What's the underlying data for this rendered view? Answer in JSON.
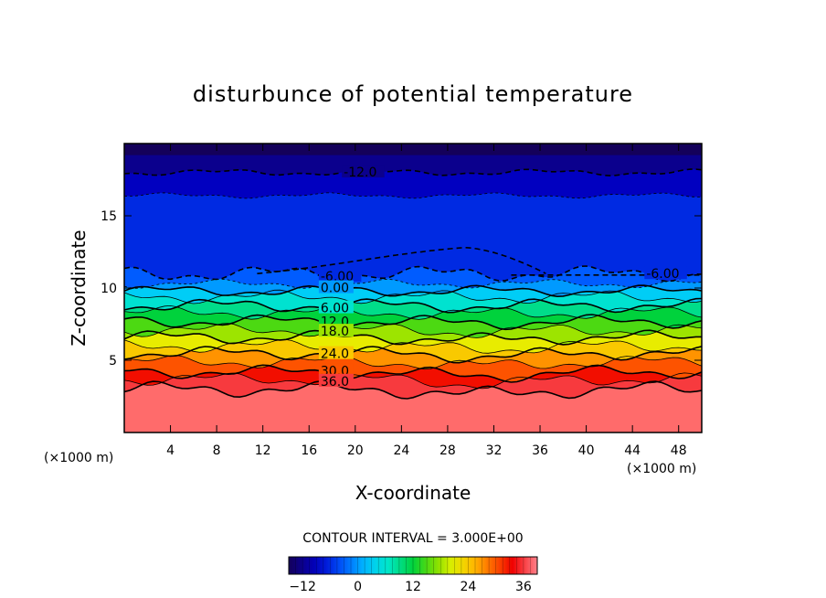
{
  "chart_data": {
    "type": "heatmap",
    "title": "disturbunce of potential temperature",
    "xlabel": "X-coordinate",
    "ylabel": "Z-coordinate",
    "x_unit_left": "(×1000 m)",
    "x_unit_right": "(×1000 m)",
    "xlim": [
      0,
      50
    ],
    "ylim": [
      0,
      20
    ],
    "xticks": [
      4,
      8,
      12,
      16,
      20,
      24,
      28,
      32,
      36,
      40,
      44,
      48
    ],
    "yticks": [
      5,
      10,
      15
    ],
    "grid": false,
    "contour_interval_text": "CONTOUR INTERVAL = 3.000E+00",
    "color_range": [
      -15,
      39
    ],
    "colorbar_ticks": [
      -12,
      0,
      12,
      24,
      36
    ],
    "levels": [
      {
        "value": -12,
        "z": 18.0,
        "amp": 0.15,
        "dashed": true,
        "label": "-12.0",
        "label_x": 19.0
      },
      {
        "value": -9,
        "z": 16.4,
        "amp": 0.12,
        "dashed": true,
        "label": "",
        "label_x": null
      },
      {
        "value": -6,
        "z": 11.0,
        "amp": 0.35,
        "dashed": true,
        "label": "-6.00",
        "label_x": 17.0
      },
      {
        "value": -3,
        "z": 10.3,
        "amp": 0.2,
        "dashed": true,
        "label": "",
        "label_x": null
      },
      {
        "value": 0,
        "z": 9.8,
        "amp": 0.25,
        "dashed": false,
        "label": "0.00",
        "label_x": 17.0
      },
      {
        "value": 3,
        "z": 9.4,
        "amp": 0.3,
        "dashed": false,
        "label": "",
        "label_x": null
      },
      {
        "value": 6,
        "z": 8.8,
        "amp": 0.3,
        "dashed": false,
        "label": "6.00",
        "label_x": 17.0
      },
      {
        "value": 9,
        "z": 8.3,
        "amp": 0.3,
        "dashed": false,
        "label": "",
        "label_x": null
      },
      {
        "value": 12,
        "z": 7.7,
        "amp": 0.3,
        "dashed": false,
        "label": "12.0",
        "label_x": 17.0
      },
      {
        "value": 15,
        "z": 7.1,
        "amp": 0.3,
        "dashed": false,
        "label": "",
        "label_x": null
      },
      {
        "value": 18,
        "z": 6.6,
        "amp": 0.3,
        "dashed": false,
        "label": "18.0",
        "label_x": 17.0
      },
      {
        "value": 21,
        "z": 6.0,
        "amp": 0.3,
        "dashed": false,
        "label": "",
        "label_x": null
      },
      {
        "value": 24,
        "z": 5.5,
        "amp": 0.3,
        "dashed": false,
        "label": "24.0",
        "label_x": 17.0
      },
      {
        "value": 27,
        "z": 4.9,
        "amp": 0.3,
        "dashed": false,
        "label": "",
        "label_x": null
      },
      {
        "value": 30,
        "z": 4.2,
        "amp": 0.3,
        "dashed": false,
        "label": "30.0",
        "label_x": 17.0
      },
      {
        "value": 33,
        "z": 3.7,
        "amp": 0.3,
        "dashed": false,
        "label": "",
        "label_x": null
      },
      {
        "value": 36,
        "z": 3.0,
        "amp": 0.35,
        "dashed": false,
        "label": "36.0",
        "label_x": 17.0
      }
    ],
    "extra_label": {
      "text": "-6.00",
      "x": 45.2,
      "z": 11.0
    },
    "dome": {
      "value": -6,
      "x_start": 11.5,
      "x_peak": 29.5,
      "x_end": 36.5,
      "z_base": 11.0,
      "z_peak": 12.8
    },
    "dashed_segment": {
      "value": -6,
      "x_start": 33.5,
      "x_end": 50,
      "z": 10.9
    }
  },
  "colors": {
    "background": "#ffffff",
    "frame": "#000000",
    "bottom_fill": "#ff6b6b"
  }
}
